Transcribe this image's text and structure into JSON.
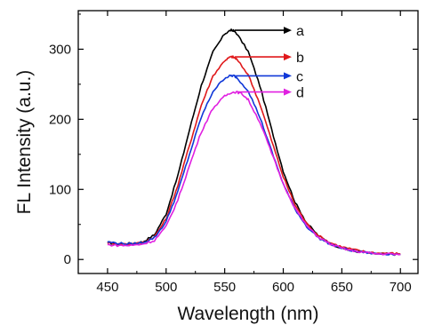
{
  "chart_data": {
    "type": "line",
    "title": "",
    "xlabel": "Wavelength (nm)",
    "ylabel": "FL Intensity (a.u.)",
    "xlim": [
      425,
      715
    ],
    "ylim": [
      -20,
      355
    ],
    "xticks": [
      450,
      500,
      550,
      600,
      650,
      700
    ],
    "yticks": [
      0,
      100,
      200,
      300
    ],
    "grid": false,
    "legend": "inline labels with arrows near peaks",
    "series": [
      {
        "name": "a",
        "color": "#000000",
        "peak_x": 557,
        "x": [
          450,
          460,
          470,
          480,
          490,
          500,
          510,
          520,
          530,
          540,
          550,
          555,
          557,
          560,
          570,
          580,
          590,
          600,
          610,
          620,
          630,
          640,
          650,
          660,
          670,
          680,
          690,
          700
        ],
        "y": [
          24,
          22,
          23,
          25,
          35,
          65,
          120,
          185,
          248,
          296,
          322,
          327,
          327,
          323,
          297,
          248,
          186,
          126,
          82,
          52,
          34,
          23,
          16,
          12,
          10,
          8,
          8,
          7
        ]
      },
      {
        "name": "b",
        "color": "#e0191b",
        "peak_x": 557,
        "x": [
          450,
          460,
          470,
          480,
          490,
          500,
          510,
          520,
          530,
          540,
          550,
          555,
          557,
          560,
          570,
          580,
          590,
          600,
          610,
          620,
          630,
          640,
          650,
          660,
          670,
          680,
          690,
          700
        ],
        "y": [
          24,
          22,
          22,
          24,
          32,
          58,
          106,
          163,
          220,
          262,
          284,
          289,
          289,
          286,
          264,
          222,
          170,
          118,
          78,
          51,
          34,
          24,
          18,
          14,
          11,
          9,
          9,
          8
        ]
      },
      {
        "name": "c",
        "color": "#1038d8",
        "peak_x": 558,
        "x": [
          450,
          460,
          470,
          480,
          490,
          500,
          510,
          520,
          530,
          540,
          550,
          555,
          558,
          560,
          570,
          580,
          590,
          600,
          610,
          620,
          630,
          640,
          650,
          660,
          670,
          680,
          690,
          700
        ],
        "y": [
          25,
          23,
          22,
          24,
          31,
          54,
          97,
          150,
          203,
          240,
          259,
          262,
          262,
          260,
          241,
          203,
          155,
          108,
          72,
          47,
          31,
          22,
          16,
          12,
          10,
          8,
          8,
          7
        ]
      },
      {
        "name": "d",
        "color": "#e020e0",
        "peak_x": 560,
        "x": [
          450,
          460,
          470,
          480,
          490,
          500,
          510,
          520,
          530,
          540,
          550,
          555,
          560,
          565,
          570,
          580,
          590,
          600,
          610,
          620,
          630,
          640,
          650,
          660,
          670,
          680,
          690,
          700
        ],
        "y": [
          21,
          20,
          20,
          22,
          27,
          47,
          85,
          134,
          182,
          216,
          233,
          238,
          239,
          236,
          228,
          196,
          152,
          108,
          73,
          48,
          32,
          22,
          16,
          12,
          10,
          8,
          8,
          7
        ]
      }
    ]
  }
}
